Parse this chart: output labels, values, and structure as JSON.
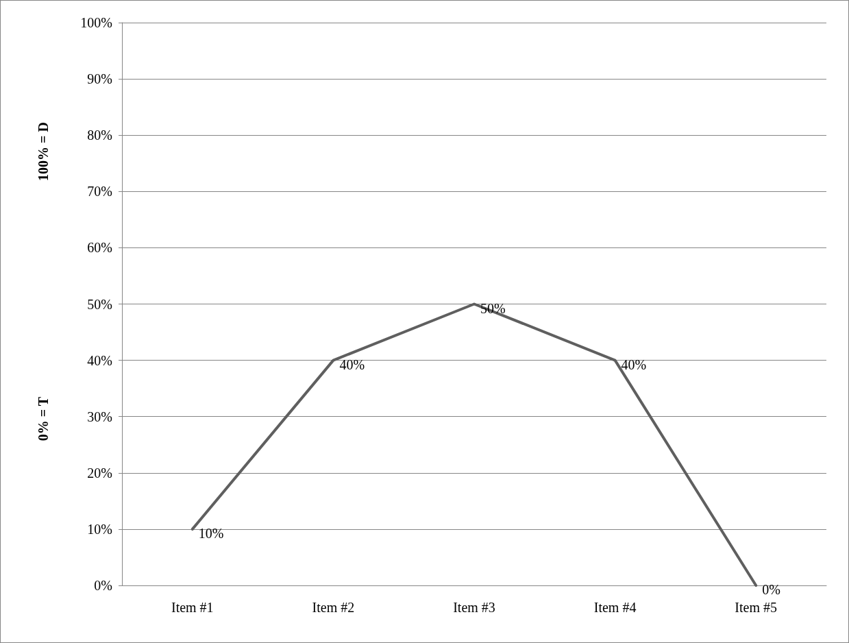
{
  "chart_data": {
    "type": "line",
    "categories": [
      "Item #1",
      "Item #2",
      "Item #3",
      "Item #4",
      "Item #5"
    ],
    "series": [
      {
        "color": "#5f5f5f",
        "values": [
          10,
          40,
          50,
          40,
          0
        ],
        "value_labels": [
          "10%",
          "40%",
          "50%",
          "40%",
          "0%"
        ]
      }
    ],
    "ylim": [
      0,
      100
    ],
    "yticks": [
      {
        "value": 0,
        "label": "0%"
      },
      {
        "value": 10,
        "label": "10%"
      },
      {
        "value": 20,
        "label": "20%"
      },
      {
        "value": 30,
        "label": "30%"
      },
      {
        "value": 40,
        "label": "40%"
      },
      {
        "value": 50,
        "label": "50%"
      },
      {
        "value": 60,
        "label": "60%"
      },
      {
        "value": 70,
        "label": "70%"
      },
      {
        "value": 80,
        "label": "80%"
      },
      {
        "value": 90,
        "label": "90%"
      },
      {
        "value": 100,
        "label": "100%"
      }
    ],
    "annotations": [
      "0% = T",
      "100% = D"
    ],
    "grid": "y",
    "marker": "none",
    "line_style": "solid"
  }
}
